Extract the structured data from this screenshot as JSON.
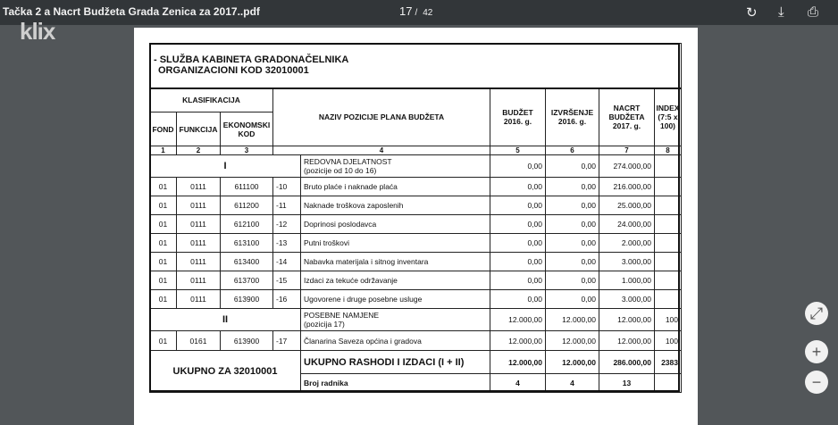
{
  "toolbar": {
    "title": "Tačka 2 a Nacrt Budžeta Grada Zenica za 2017..pdf",
    "current_page": "17",
    "separator": "/",
    "total_pages": "42",
    "icons": [
      "rotate-icon",
      "download-icon",
      "print-icon"
    ]
  },
  "watermark": "klix",
  "doc": {
    "heading1": "- SLUŽBA KABINETA GRADONAČELNIKA",
    "heading2": "ORGANIZACIONI KOD 32010001",
    "headers": {
      "klasifikacija": "KLASIFIKACIJA",
      "fond": "FOND",
      "funkcija": "FUNKCIJA",
      "ekonomski": "EKONOMSKI KOD",
      "naziv": "NAZIV POZICIJE PLANA BUDŽETA",
      "budzet": "BUDŽET 2016. g.",
      "izvrsenje": "IZVRŠENJE 2016. g.",
      "nacrt": "NACRT BUDŽETA 2017. g.",
      "index": "INDEX (7:5 x 100)"
    },
    "col_numbers": [
      "1",
      "2",
      "3",
      "4",
      "5",
      "6",
      "7",
      "8"
    ],
    "section1": {
      "roman": "I",
      "name1": "REDOVNA DJELATNOST",
      "name2": "(pozicije od 10 do 16)",
      "b": "0,00",
      "i": "0,00",
      "n": "274.000,00",
      "x": ""
    },
    "rows1": [
      {
        "fond": "01",
        "fun": "0111",
        "eko": "611100",
        "poz": "-10",
        "name": "Bruto plaće i naknade plaća",
        "b": "0,00",
        "i": "0,00",
        "n": "216.000,00",
        "x": ""
      },
      {
        "fond": "01",
        "fun": "0111",
        "eko": "611200",
        "poz": "-11",
        "name": "Naknade troškova zaposlenih",
        "b": "0,00",
        "i": "0,00",
        "n": "25.000,00",
        "x": ""
      },
      {
        "fond": "01",
        "fun": "0111",
        "eko": "612100",
        "poz": "-12",
        "name": "Doprinosi poslodavca",
        "b": "0,00",
        "i": "0,00",
        "n": "24.000,00",
        "x": ""
      },
      {
        "fond": "01",
        "fun": "0111",
        "eko": "613100",
        "poz": "-13",
        "name": "Putni troškovi",
        "b": "0,00",
        "i": "0,00",
        "n": "2.000,00",
        "x": ""
      },
      {
        "fond": "01",
        "fun": "0111",
        "eko": "613400",
        "poz": "-14",
        "name": "Nabavka materijala i sitnog inventara",
        "b": "0,00",
        "i": "0,00",
        "n": "3.000,00",
        "x": ""
      },
      {
        "fond": "01",
        "fun": "0111",
        "eko": "613700",
        "poz": "-15",
        "name": "Izdaci za tekuće održavanje",
        "b": "0,00",
        "i": "0,00",
        "n": "1.000,00",
        "x": ""
      },
      {
        "fond": "01",
        "fun": "0111",
        "eko": "613900",
        "poz": "-16",
        "name": "Ugovorene i druge posebne usluge",
        "b": "0,00",
        "i": "0,00",
        "n": "3.000,00",
        "x": ""
      }
    ],
    "section2": {
      "roman": "II",
      "name1": "POSEBNE NAMJENE",
      "name2": "(pozicija 17)",
      "b": "12.000,00",
      "i": "12.000,00",
      "n": "12.000,00",
      "x": "100"
    },
    "rows2": [
      {
        "fond": "01",
        "fun": "0161",
        "eko": "613900",
        "poz": "-17",
        "name": "Članarina Saveza općina i gradova",
        "b": "12.000,00",
        "i": "12.000,00",
        "n": "12.000,00",
        "x": "100"
      }
    ],
    "total": {
      "label": "UKUPNO ZA 32010001",
      "name": "UKUPNO RASHODI I IZDACI (I + II)",
      "b": "12.000,00",
      "i": "12.000,00",
      "n": "286.000,00",
      "x": "2383"
    },
    "workers": {
      "name": "Broj radnika",
      "b": "4",
      "i": "4",
      "n": "13",
      "x": ""
    }
  },
  "side_buttons": [
    "fit-page-icon",
    "zoom-in-icon",
    "zoom-out-icon"
  ]
}
